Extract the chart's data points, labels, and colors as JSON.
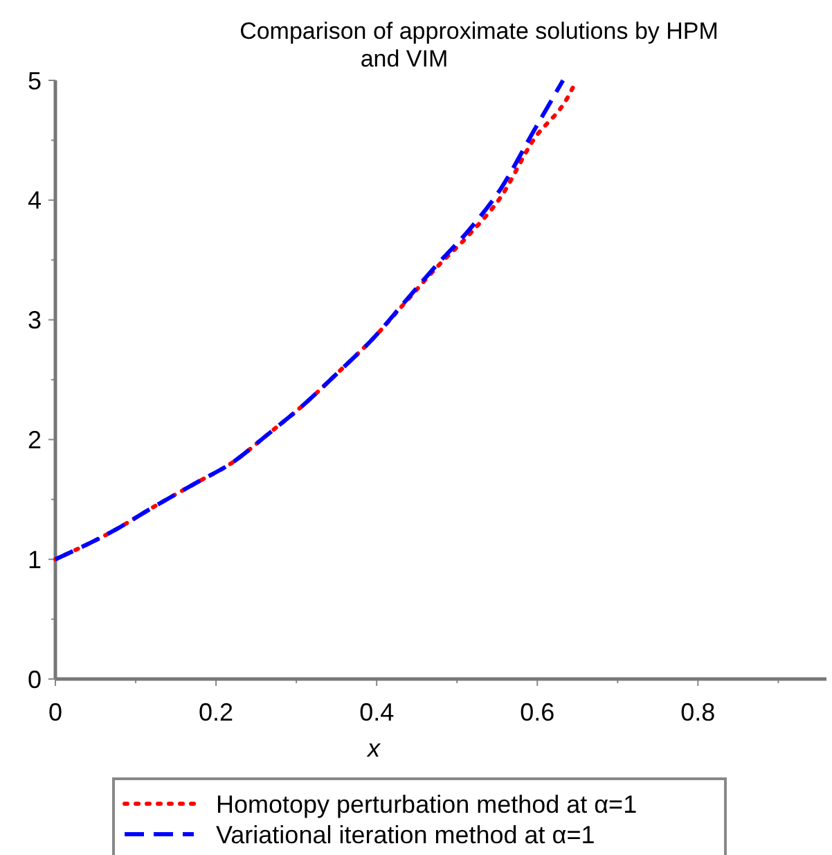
{
  "chart_data": {
    "type": "line",
    "title": "Comparison of approximate solutions by HPM and VIM",
    "xlabel": "x",
    "xlim": [
      0,
      0.96
    ],
    "ylim": [
      0,
      5
    ],
    "xticks": [
      0,
      {
        "value": 0.1,
        "label": null
      },
      0.2,
      {
        "value": 0.3,
        "label": null
      },
      0.4,
      {
        "value": 0.5,
        "label": null
      },
      0.6,
      {
        "value": 0.7,
        "label": null
      },
      0.8,
      {
        "value": 0.9,
        "label": null
      }
    ],
    "yticks": [
      0,
      {
        "value": 0.5,
        "label": null
      },
      1,
      {
        "value": 1.5,
        "label": null
      },
      2,
      {
        "value": 2.5,
        "label": null
      },
      3,
      {
        "value": 3.5,
        "label": null
      },
      4,
      {
        "value": 4.5,
        "label": null
      },
      5
    ],
    "legend": "bottom",
    "grid": false,
    "series": [
      {
        "name": "Homotopy perturbation method at α=1",
        "color": "#ff0000",
        "line_style": "dotted",
        "x": [
          0,
          0.073,
          0.123,
          0.173,
          0.223,
          0.262,
          0.309,
          0.355,
          0.395,
          0.435,
          0.475,
          0.515,
          0.555,
          0.595,
          0.638,
          0.648
        ],
        "values": [
          1,
          1.24,
          1.44,
          1.63,
          1.82,
          2.03,
          2.29,
          2.58,
          2.84,
          3.14,
          3.44,
          3.71,
          4.03,
          4.5,
          4.86,
          4.99
        ]
      },
      {
        "name": "Variational iteration method at α=1",
        "color": "#0000ff",
        "line_style": "dashed",
        "x": [
          0,
          0.073,
          0.123,
          0.173,
          0.223,
          0.262,
          0.309,
          0.355,
          0.395,
          0.435,
          0.475,
          0.515,
          0.555,
          0.595,
          0.632
        ],
        "values": [
          1,
          1.24,
          1.44,
          1.63,
          1.82,
          2.03,
          2.29,
          2.58,
          2.84,
          3.15,
          3.46,
          3.75,
          4.1,
          4.57,
          5
        ]
      }
    ]
  }
}
